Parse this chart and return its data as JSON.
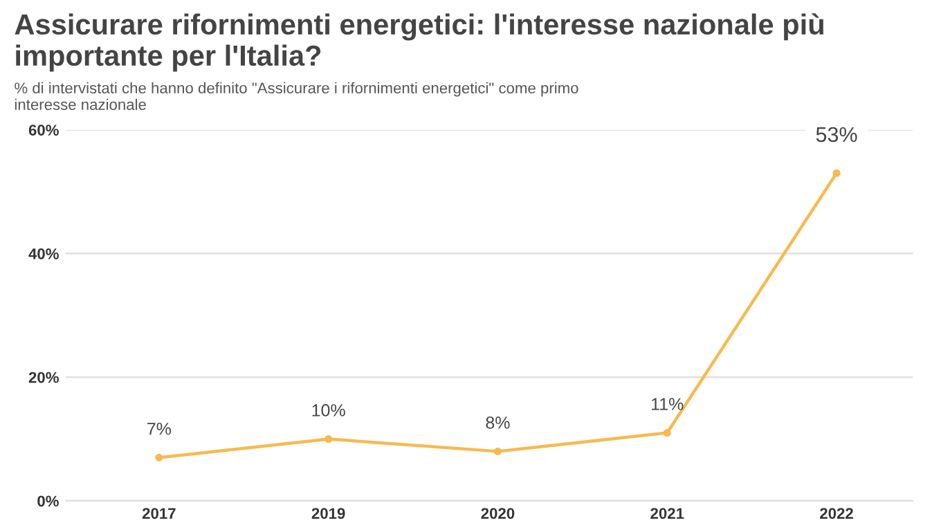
{
  "chart_data": {
    "type": "line",
    "title": "Assicurare rifornimenti energetici: l'interesse nazionale più importante per l'Italia?",
    "subtitle": "% di intervistati che hanno definito \"Assicurare i rifornimenti energetici\" come primo interesse nazionale",
    "categories": [
      "2017",
      "2019",
      "2020",
      "2021",
      "2022"
    ],
    "series": [
      {
        "color": "#f9b94e",
        "values": [
          7,
          10,
          8,
          11,
          53
        ],
        "value_labels": [
          "7%",
          "10%",
          "8%",
          "11%",
          "53%"
        ]
      }
    ],
    "ylim": [
      0,
      60
    ],
    "yticks": [
      {
        "value": 0,
        "label": "0%"
      },
      {
        "value": 20,
        "label": "20%"
      },
      {
        "value": 40,
        "label": "40%"
      },
      {
        "value": 60,
        "label": "60%"
      }
    ],
    "grid": "y",
    "marker": "circle",
    "line_style": "solid"
  }
}
